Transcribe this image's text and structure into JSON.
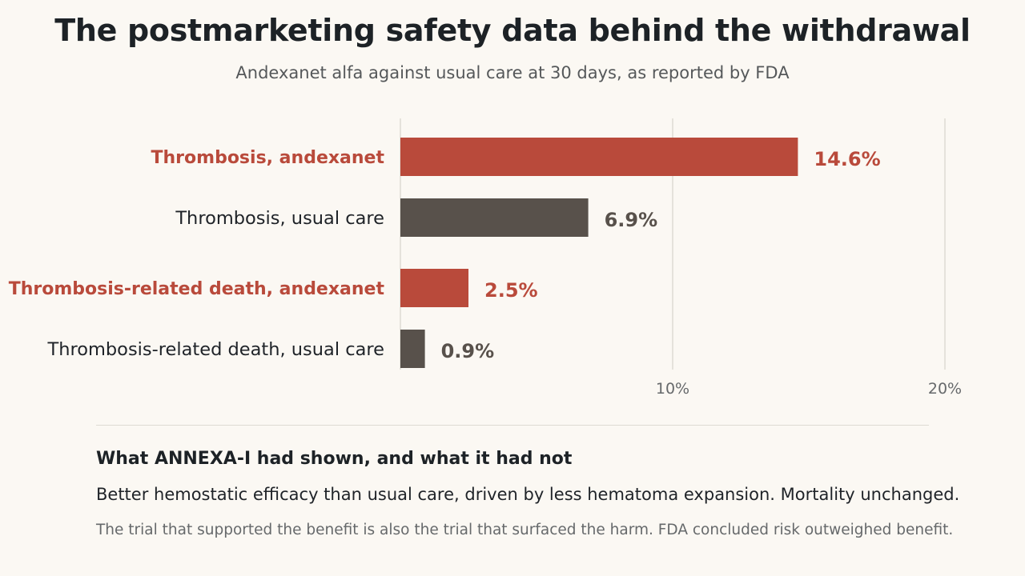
{
  "title": "The postmarketing safety data behind the withdrawal",
  "subtitle": "Andexanet alfa against usual care at 30 days, as reported by FDA",
  "chart_data": {
    "type": "bar",
    "orientation": "horizontal",
    "categories": [
      "Thrombosis, andexanet",
      "Thrombosis, usual care",
      "Thrombosis-related death, andexanet",
      "Thrombosis-related death, usual care"
    ],
    "values": [
      14.6,
      6.9,
      2.5,
      0.9
    ],
    "data_labels": [
      "14.6%",
      "6.9%",
      "2.5%",
      "0.9%"
    ],
    "bar_colors": [
      "#b94a3b",
      "#58514b",
      "#b94a3b",
      "#58514b"
    ],
    "xlim": [
      0,
      20
    ],
    "xticks": [
      10,
      20
    ],
    "xtick_labels": [
      "10%",
      "20%"
    ],
    "grid": "vertical",
    "xlabel": "",
    "ylabel": ""
  },
  "note": {
    "title": "What ANNEXA-I had shown, and what it had not",
    "body": "Better hemostatic efficacy than usual care, driven by less hematoma expansion. Mortality unchanged.",
    "footnote": "The trial that supported the benefit is also the trial that surfaced the harm. FDA concluded risk outweighed benefit."
  },
  "colors": {
    "background": "#fbf8f3",
    "accent": "#b94a3b",
    "neutral": "#58514b",
    "grid": "#dedad3"
  }
}
